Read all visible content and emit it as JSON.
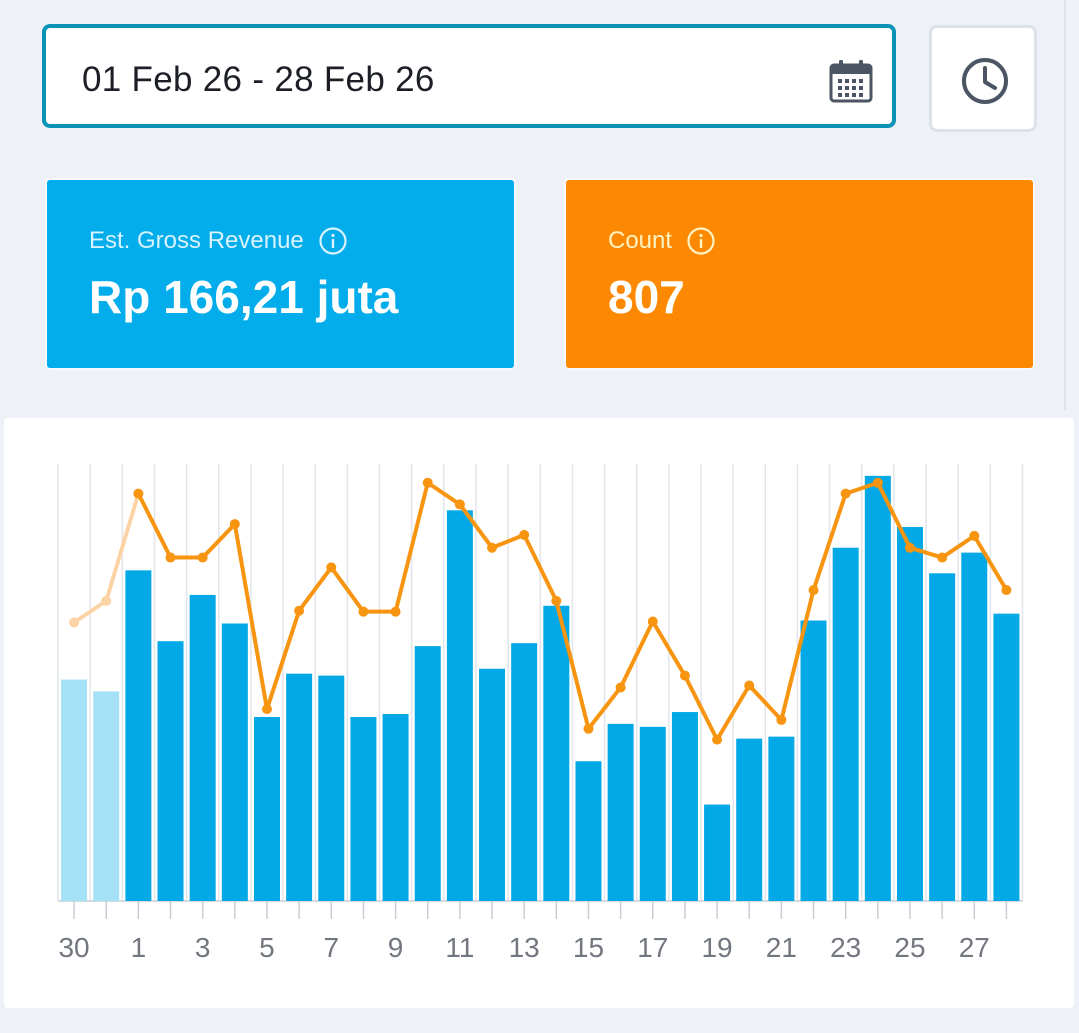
{
  "date_range": {
    "value": "01 Feb 26 - 28 Feb 26",
    "calendar_icon": "calendar-icon",
    "clock_icon": "clock-icon"
  },
  "cards": [
    {
      "label": "Est. Gross Revenue",
      "value": "Rp 166,21 juta",
      "color": "#03acea",
      "icon": "info-icon"
    },
    {
      "label": "Count",
      "value": "807",
      "color": "#fd8903",
      "icon": "info-icon"
    }
  ],
  "chart_data": {
    "type": "bar",
    "categories": [
      "30",
      "31",
      "1",
      "2",
      "3",
      "4",
      "5",
      "6",
      "7",
      "8",
      "9",
      "10",
      "11",
      "12",
      "13",
      "14",
      "15",
      "16",
      "17",
      "18",
      "19",
      "20",
      "21",
      "22",
      "23",
      "24",
      "25",
      "26",
      "27",
      "28"
    ],
    "x_tick_labels": [
      "30",
      "1",
      "3",
      "5",
      "7",
      "9",
      "11",
      "13",
      "15",
      "17",
      "19",
      "21",
      "23",
      "25",
      "27"
    ],
    "series": [
      {
        "kind": "bar",
        "color": "#03a9e6",
        "faded_color": "#a6e2f7",
        "faded_categories": [
          "30",
          "31"
        ],
        "values": [
          225,
          213,
          336,
          264,
          311,
          282,
          187,
          231,
          229,
          187,
          190,
          259,
          397,
          236,
          262,
          300,
          142,
          180,
          177,
          192,
          98,
          165,
          167,
          285,
          359,
          432,
          380,
          333,
          354,
          292
        ]
      },
      {
        "kind": "line",
        "color": "#f79410",
        "faded_color": "#fcd3a5",
        "faded_categories": [
          "30",
          "31"
        ],
        "values": [
          283,
          305,
          414,
          349,
          349,
          383,
          195,
          295,
          339,
          294,
          294,
          425,
          403,
          359,
          372,
          305,
          175,
          217,
          284,
          229,
          164,
          219,
          184,
          316,
          414,
          425,
          359,
          349,
          371,
          316
        ]
      }
    ],
    "ylim": [
      0,
      440
    ],
    "grid": "vertical"
  }
}
